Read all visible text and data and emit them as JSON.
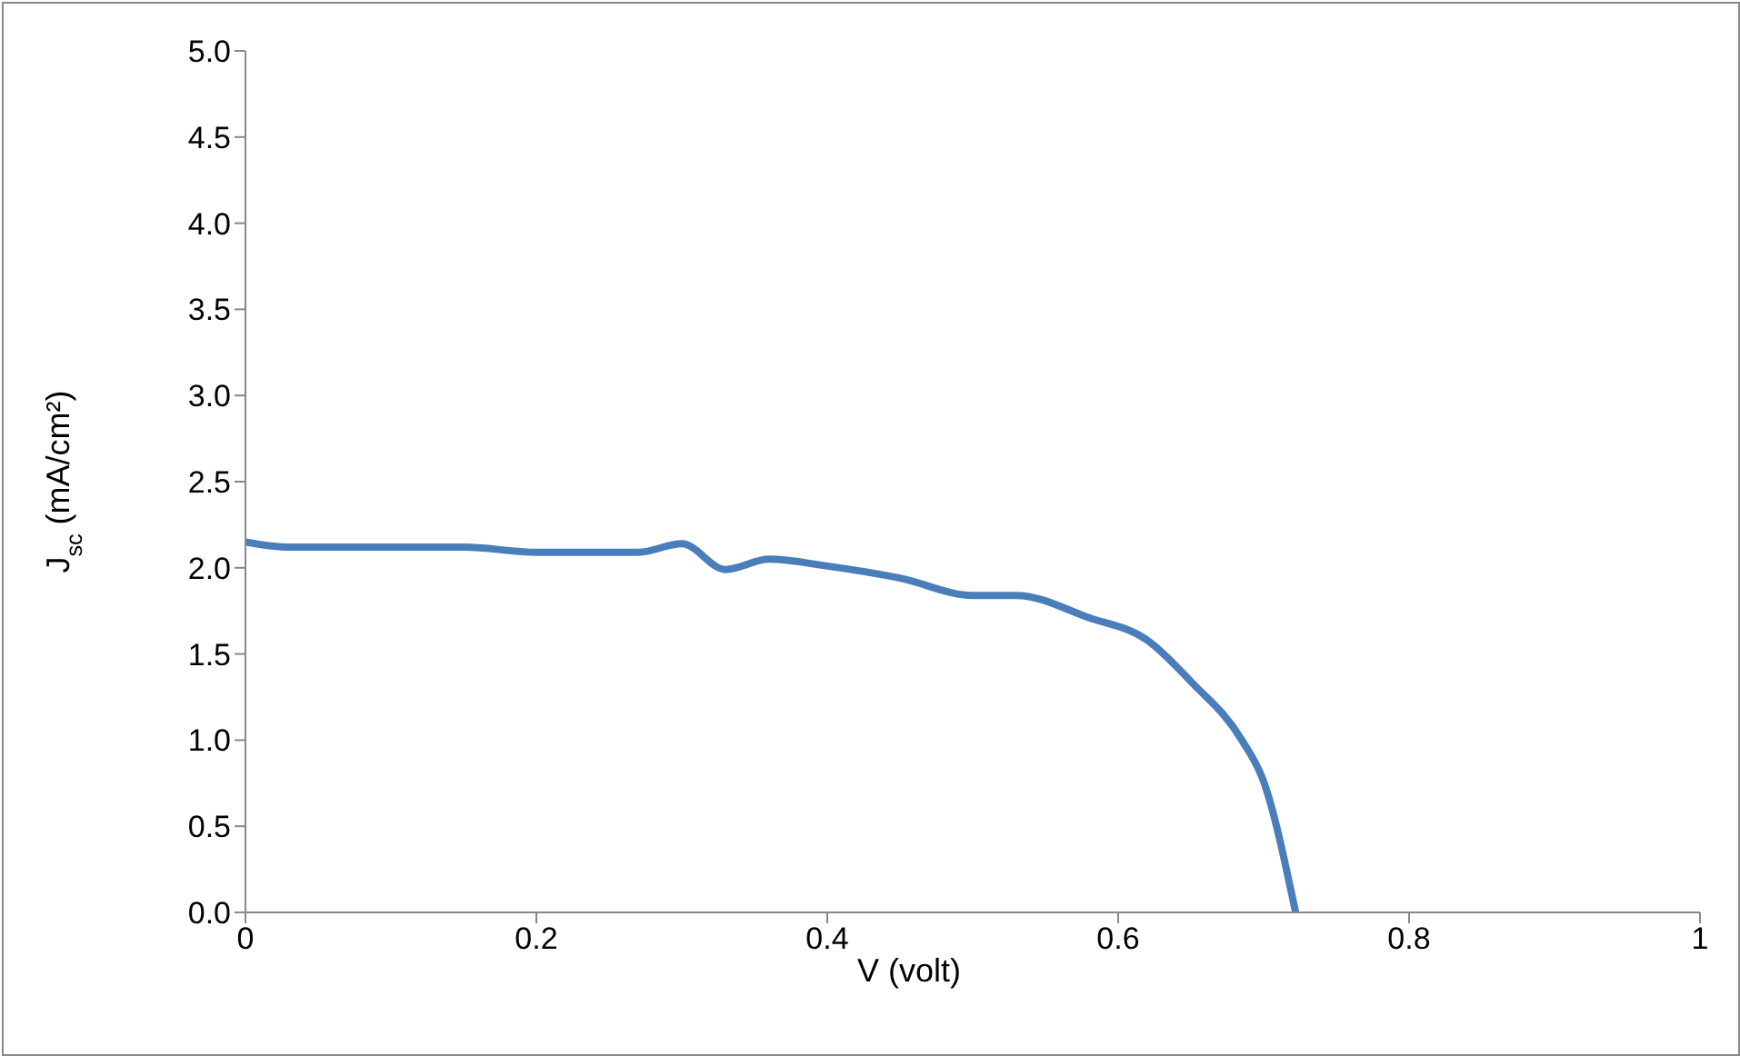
{
  "chart_data": {
    "type": "line",
    "xlabel": "V (volt)",
    "ylabel": "J$_{sc}$ (mA/cm²)",
    "x": [
      0,
      0.03,
      0.1,
      0.15,
      0.2,
      0.27,
      0.3,
      0.33,
      0.36,
      0.4,
      0.45,
      0.5,
      0.53,
      0.58,
      0.62,
      0.65,
      0.685,
      0.7,
      0.722
    ],
    "series": [
      {
        "color": "#4a7ebb",
        "values": [
          2.15,
          2.12,
          2.12,
          2.12,
          2.09,
          2.09,
          2.14,
          1.99,
          2.05,
          2.01,
          1.94,
          1.84,
          1.84,
          1.71,
          1.58,
          1.34,
          1.0,
          0.76,
          0
        ]
      }
    ],
    "xlim": [
      0,
      1
    ],
    "xticks": [
      0,
      0.2,
      0.4,
      0.6,
      0.8,
      1
    ],
    "ylim": [
      0,
      5
    ],
    "yticks": [
      {
        "value": 0,
        "label": "0.0"
      },
      {
        "value": 0.5,
        "label": "0.5"
      },
      {
        "value": 1,
        "label": "1.0"
      },
      {
        "value": 1.5,
        "label": "1.5"
      },
      {
        "value": 2,
        "label": "2.0"
      },
      {
        "value": 2.5,
        "label": "2.5"
      },
      {
        "value": 3,
        "label": "3.0"
      },
      {
        "value": 3.5,
        "label": "3.5"
      },
      {
        "value": 4,
        "label": "4.0"
      },
      {
        "value": 4.5,
        "label": "4.5"
      },
      {
        "value": 5,
        "label": "5.0"
      }
    ],
    "grid": false,
    "legend": false,
    "marker": "none",
    "line_style": "solid"
  }
}
